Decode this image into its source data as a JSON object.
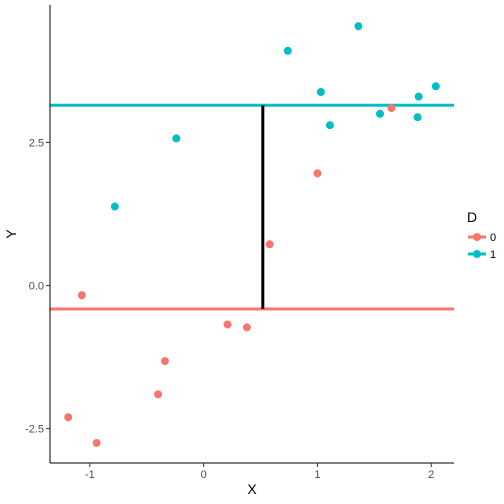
{
  "chart_data": {
    "type": "scatter",
    "xlabel": "X",
    "ylabel": "Y",
    "xlim": [
      -1.35,
      2.2
    ],
    "ylim": [
      -3.1,
      4.9
    ],
    "x_ticks": [
      -1,
      0,
      1,
      2
    ],
    "x_tick_labels": [
      "-1",
      "0",
      "1",
      "2"
    ],
    "y_ticks": [
      -2.5,
      0.0,
      2.5
    ],
    "y_tick_labels": [
      "-2.5",
      "0.0",
      "2.5"
    ],
    "grid": false,
    "legend": {
      "title": "D",
      "placement": "right",
      "entries": [
        {
          "label": "0",
          "color": "#F8766D"
        },
        {
          "label": "1",
          "color": "#00BFC4"
        }
      ]
    },
    "series": [
      {
        "name": "0",
        "color": "#F8766D",
        "mean_line": -0.41,
        "points": [
          {
            "x": -1.19,
            "y": -2.3
          },
          {
            "x": -0.94,
            "y": -2.75
          },
          {
            "x": -1.07,
            "y": -0.17
          },
          {
            "x": -0.34,
            "y": -1.32
          },
          {
            "x": -0.4,
            "y": -1.9
          },
          {
            "x": 0.21,
            "y": -0.68
          },
          {
            "x": 0.38,
            "y": -0.73
          },
          {
            "x": 0.58,
            "y": 0.72
          },
          {
            "x": 1.0,
            "y": 1.96
          },
          {
            "x": 1.65,
            "y": 3.1
          }
        ]
      },
      {
        "name": "1",
        "color": "#00BFC4",
        "mean_line": 3.15,
        "points": [
          {
            "x": -0.78,
            "y": 1.38
          },
          {
            "x": -0.24,
            "y": 2.57
          },
          {
            "x": 0.74,
            "y": 4.1
          },
          {
            "x": 1.03,
            "y": 3.38
          },
          {
            "x": 1.11,
            "y": 2.8
          },
          {
            "x": 1.36,
            "y": 4.53
          },
          {
            "x": 1.55,
            "y": 3.0
          },
          {
            "x": 1.88,
            "y": 2.94
          },
          {
            "x": 1.89,
            "y": 3.3
          },
          {
            "x": 2.04,
            "y": 3.48
          }
        ]
      }
    ],
    "segment": {
      "x": 0.52,
      "y0": -0.41,
      "y1": 3.15,
      "color": "#000000"
    }
  }
}
